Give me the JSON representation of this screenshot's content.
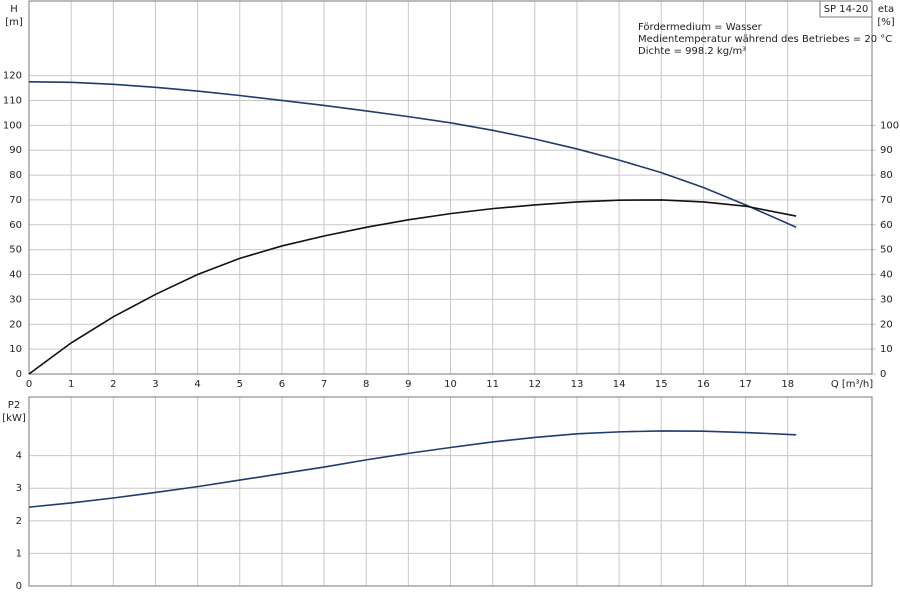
{
  "chart_data": [
    {
      "type": "line",
      "y_label": "H",
      "y_unit": "[m]",
      "y2_label": "eta",
      "y2_unit": "[%]",
      "x_label": "Q [m³/h]",
      "product": "SP 14-20",
      "annotations": [
        "Fördermedium = Wasser",
        "Medientemperatur während des Betriebes = 20 °C",
        "Dichte = 998.2 kg/m³"
      ],
      "x": [
        0,
        1,
        2,
        3,
        4,
        5,
        6,
        7,
        8,
        9,
        10,
        11,
        12,
        13,
        14,
        15,
        16,
        17,
        18.2
      ],
      "series": [
        {
          "color": "#1f3c6e",
          "values": [
            117.5,
            117.3,
            116.5,
            115.3,
            113.8,
            112,
            110,
            108,
            105.8,
            103.5,
            101,
            98,
            94.5,
            90.5,
            86,
            81,
            75,
            68,
            59
          ]
        },
        {
          "color": "#111111",
          "axis": "y2",
          "values": [
            0,
            12.5,
            23,
            32,
            40,
            46.5,
            51.5,
            55.5,
            59,
            62,
            64.5,
            66.5,
            68,
            69.2,
            69.9,
            70,
            69.2,
            67.5,
            63.5
          ]
        }
      ],
      "xlim": [
        0,
        20
      ],
      "xticks": [
        0,
        1,
        2,
        3,
        4,
        5,
        6,
        7,
        8,
        9,
        10,
        11,
        12,
        13,
        14,
        15,
        16,
        17,
        18
      ],
      "ylim": [
        0,
        150
      ],
      "yticks": [
        0,
        10,
        20,
        30,
        40,
        50,
        60,
        70,
        80,
        90,
        100,
        110,
        120
      ],
      "y2lim": [
        0,
        150
      ],
      "y2ticks": [
        0,
        10,
        20,
        30,
        40,
        50,
        60,
        70,
        80,
        90,
        100
      ],
      "grid": true
    },
    {
      "type": "line",
      "y_label": "P2",
      "y_unit": "[kW]",
      "x": [
        0,
        1,
        2,
        3,
        4,
        5,
        6,
        7,
        8,
        9,
        10,
        11,
        12,
        13,
        14,
        15,
        16,
        17,
        18.2
      ],
      "series": [
        {
          "color": "#1f3c6e",
          "values": [
            2.42,
            2.55,
            2.7,
            2.87,
            3.05,
            3.25,
            3.45,
            3.65,
            3.87,
            4.07,
            4.25,
            4.42,
            4.56,
            4.67,
            4.73,
            4.76,
            4.75,
            4.71,
            4.64
          ]
        }
      ],
      "xlim": [
        0,
        20
      ],
      "xticks": [
        0,
        1,
        2,
        3,
        4,
        5,
        6,
        7,
        8,
        9,
        10,
        11,
        12,
        13,
        14,
        15,
        16,
        17,
        18
      ],
      "ylim": [
        0,
        5.8
      ],
      "yticks": [
        0,
        1,
        2,
        3,
        4
      ],
      "grid": true
    }
  ]
}
